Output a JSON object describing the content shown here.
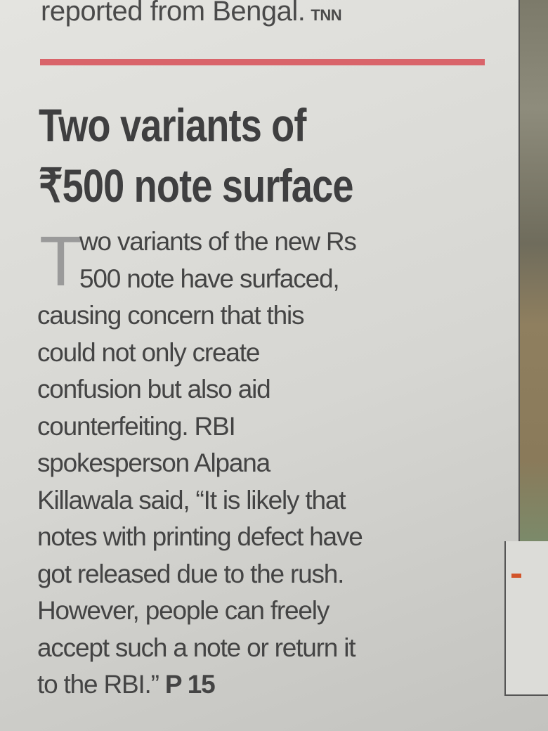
{
  "previous_story": {
    "tail_text": "reported from Bengal.",
    "source": "TNN"
  },
  "article": {
    "headline_lines": [
      "Two variants of",
      "₹500 note surface"
    ],
    "drop_cap": "T",
    "body_lines": [
      "wo variants of the new Rs",
      "500 note have surfaced,",
      "causing concern that this",
      "could not only create",
      "confusion but also aid",
      "counterfeiting. RBI",
      "spokesperson Alpana",
      "Killawala said, “It is likely that",
      "notes with printing defect have",
      "got released due to the rush.",
      "However, people can freely",
      "accept such a note or return it",
      "to the RBI.”"
    ],
    "page_ref": "P 15"
  },
  "colors": {
    "rule": "#d9646a",
    "paper": "#d9d9d4",
    "text": "#444444"
  }
}
